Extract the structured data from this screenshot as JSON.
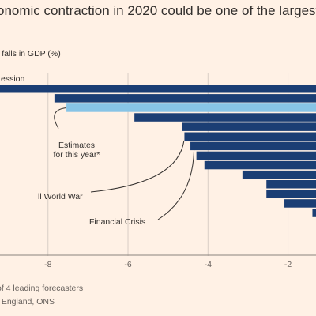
{
  "chart_data": {
    "type": "bar",
    "orientation": "horizontal",
    "title": "onomic contraction in 2020 could be one of the largest",
    "subtitle": "l falls in GDP (%)",
    "xlim": [
      -9.2,
      -1.3
    ],
    "xticks": [
      -8,
      -6,
      -4,
      -2
    ],
    "xtick_labels": [
      "-8",
      "-6",
      "-4",
      "-2"
    ],
    "grid": "vertical",
    "bars": [
      {
        "value": -9.3,
        "label": "ession",
        "highlight": false
      },
      {
        "value": -7.8,
        "label": "",
        "highlight": false
      },
      {
        "value": -7.5,
        "label": "",
        "highlight": true
      },
      {
        "value": -5.8,
        "label": "",
        "highlight": false
      },
      {
        "value": -4.6,
        "label": "",
        "highlight": false
      },
      {
        "value": -4.55,
        "label": "",
        "highlight": false
      },
      {
        "value": -4.4,
        "label": "",
        "highlight": false
      },
      {
        "value": -4.25,
        "label": "",
        "highlight": false
      },
      {
        "value": -4.05,
        "label": "",
        "highlight": false
      },
      {
        "value": -3.1,
        "label": "",
        "highlight": false
      },
      {
        "value": -2.5,
        "label": "",
        "highlight": false
      },
      {
        "value": -2.5,
        "label": "",
        "highlight": false
      },
      {
        "value": -2.05,
        "label": "",
        "highlight": false
      },
      {
        "value": -1.35,
        "label": "",
        "highlight": false
      }
    ],
    "annotations": [
      {
        "lines": [
          "Estimates",
          "for this year*"
        ],
        "bar_index": 2
      },
      {
        "lines": [
          "ll World War"
        ],
        "bar_index": 5
      },
      {
        "lines": [
          "Financial Crisis"
        ],
        "bar_index": 6
      }
    ],
    "colors": {
      "bar": "#1b3e74",
      "highlight": "#87c4e6",
      "grid": "#d9cec5",
      "axis": "#8a837d"
    }
  },
  "source": {
    "line1": " of 4 leading forecasters",
    "line2": "f England, ONS"
  }
}
